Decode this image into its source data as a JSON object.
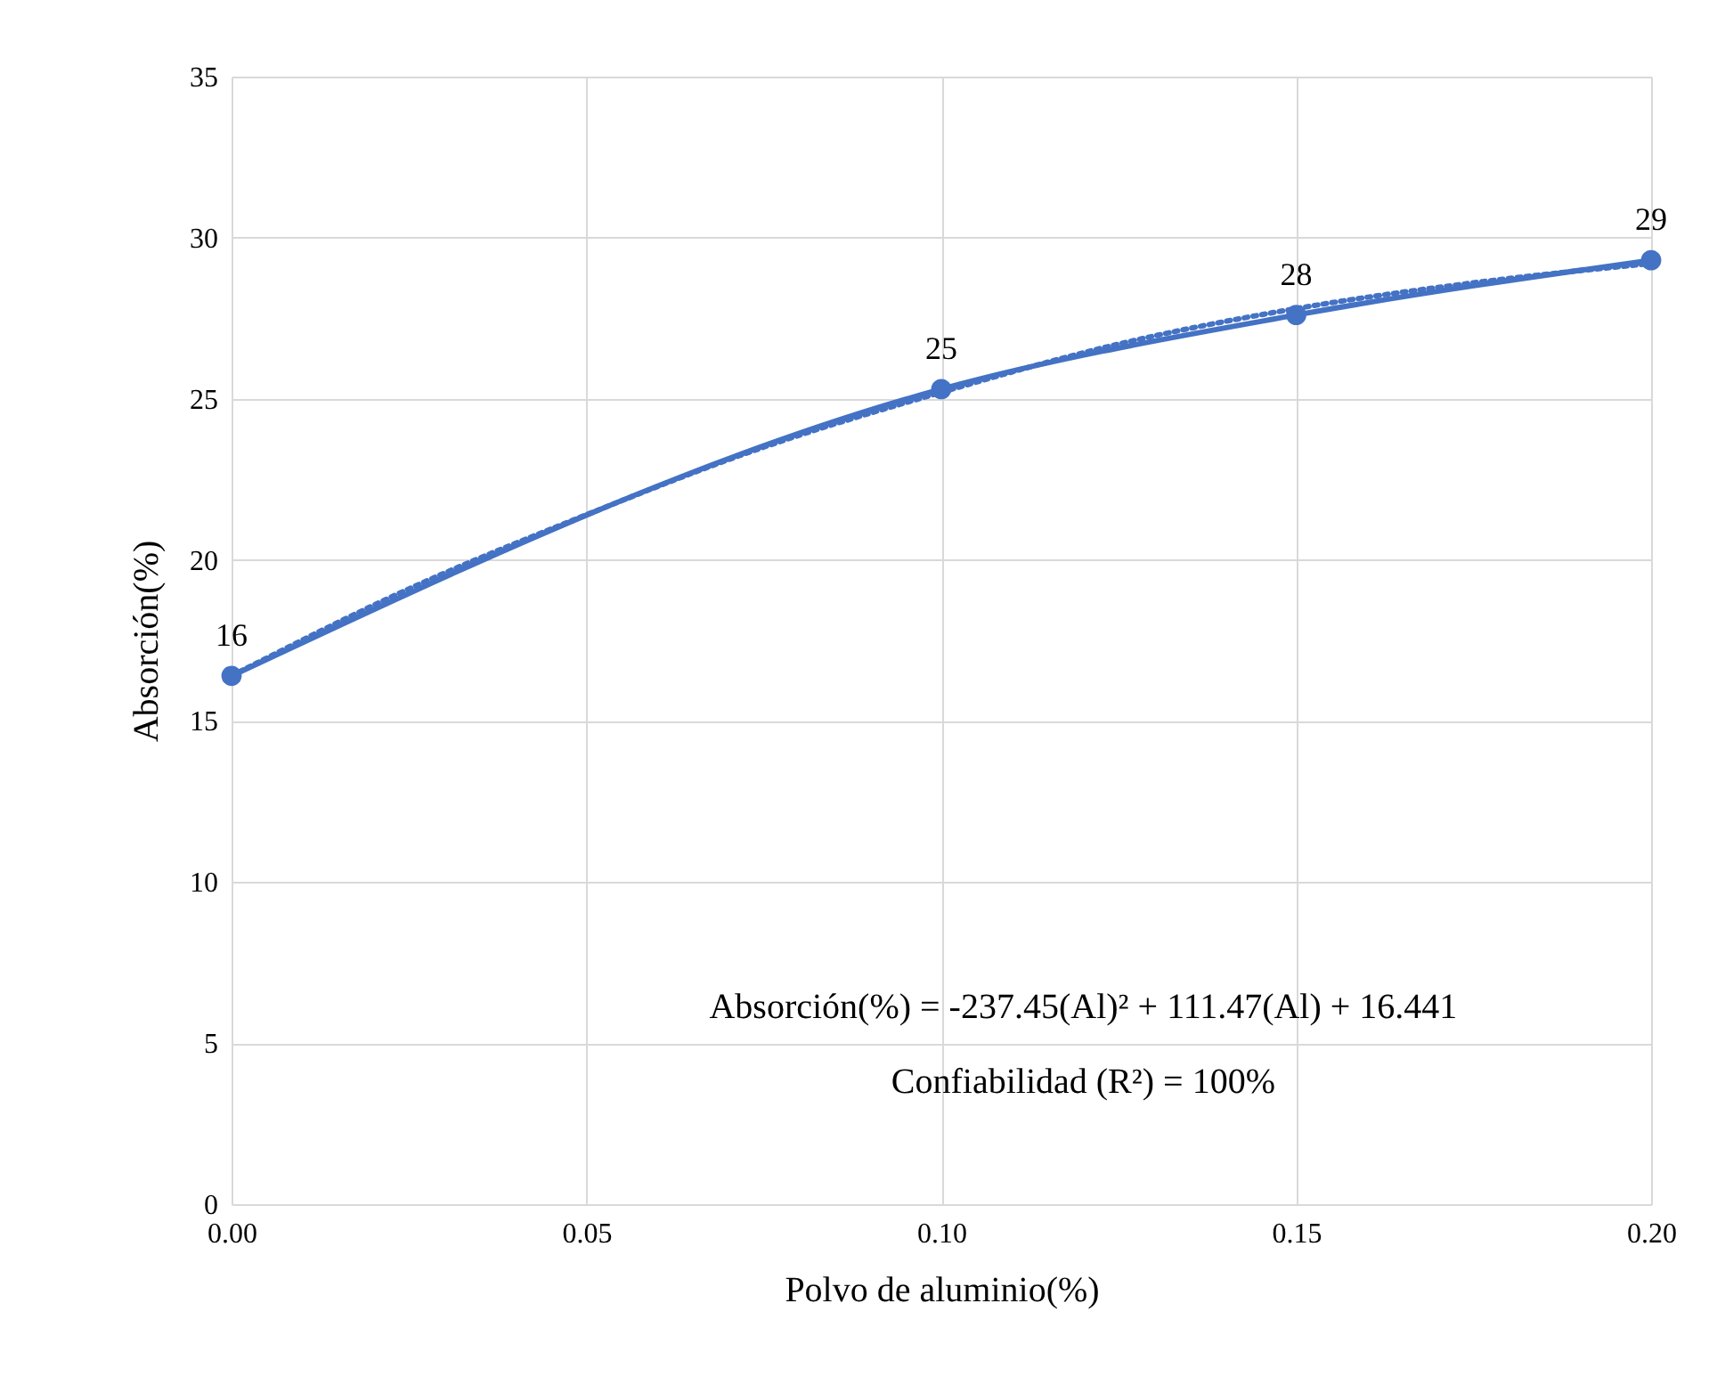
{
  "chart_data": {
    "type": "line",
    "xlabel": "Polvo de aluminio(%)",
    "ylabel": "Absorción(%)",
    "xlim": [
      0,
      0.2
    ],
    "xticks": [
      {
        "value": 0,
        "label": "0.00"
      },
      {
        "value": 0.05,
        "label": "0.05"
      },
      {
        "value": 0.1,
        "label": "0.10"
      },
      {
        "value": 0.15,
        "label": "0.15"
      },
      {
        "value": 0.2,
        "label": "0.20"
      }
    ],
    "ylim": [
      0,
      35
    ],
    "yticks": [
      0,
      5,
      10,
      15,
      20,
      25,
      30,
      35
    ],
    "grid": true,
    "series": [
      {
        "color": "#4472c4",
        "marker": "circle",
        "line_style": "solid",
        "x": [
          0,
          0.1,
          0.15,
          0.2
        ],
        "values": [
          16.4,
          25.3,
          27.6,
          29.3
        ],
        "value_labels": [
          "16",
          "25",
          "28",
          "29"
        ]
      },
      {
        "type": "line",
        "color": "#4472c4",
        "marker": "none",
        "line_style": "dotted",
        "x": [
          0,
          0.025,
          0.05,
          0.075,
          0.1,
          0.125,
          0.15,
          0.175,
          0.2
        ],
        "values": [
          16.4,
          19.1,
          21.4,
          23.5,
          25.2,
          26.7,
          27.8,
          28.6,
          29.2
        ]
      }
    ],
    "annotations": [
      "Absorción(%) = -237.45(Al)² + 111.47(Al) + 16.441",
      "Confiabilidad (R²) = 100%"
    ]
  }
}
